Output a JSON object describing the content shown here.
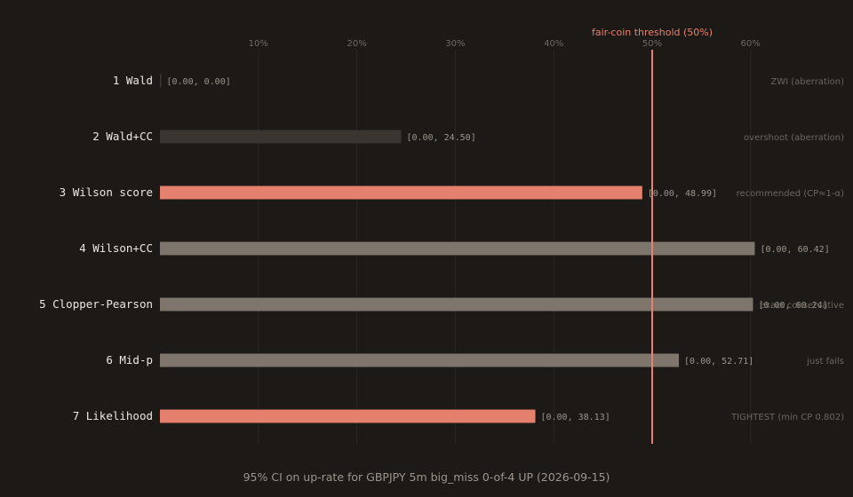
{
  "chart_data": {
    "type": "bar",
    "orientation": "horizontal",
    "title": "95% CI on up-rate for GBPJPY 5m big_miss 0-of-4 UP (2026-09-15)",
    "xlabel": "",
    "ylabel": "",
    "xlim": [
      0,
      65
    ],
    "x_ticks": [
      10,
      20,
      30,
      40,
      50,
      60
    ],
    "x_tick_labels": [
      "10%",
      "20%",
      "30%",
      "40%",
      "50%",
      "60%"
    ],
    "grid": "vertical",
    "threshold": {
      "value": 50,
      "label": "fair-coin threshold (50%)"
    },
    "colors": {
      "highlight": "#e5806e",
      "normal": "#7e756c",
      "aberration": "#3a3531",
      "threshold": "#e8826e",
      "background": "#1c1917"
    },
    "categories": [
      "1 Wald",
      "2 Wald+CC",
      "3 Wilson score",
      "4 Wilson+CC",
      "5 Clopper-Pearson",
      "6 Mid-p",
      "7 Likelihood"
    ],
    "intervals": [
      {
        "low": 0.0,
        "high": 0.0,
        "label": "[0.00, 0.00]",
        "note": "ZWI (aberration)",
        "style": "aberration"
      },
      {
        "low": 0.0,
        "high": 24.5,
        "label": "[0.00, 24.50]",
        "note": "overshoot (aberration)",
        "style": "aberration"
      },
      {
        "low": 0.0,
        "high": 48.99,
        "label": "[0.00, 48.99]",
        "note": "recommended (CP≈1-α)",
        "style": "highlight"
      },
      {
        "low": 0.0,
        "high": 60.42,
        "label": "[0.00, 60.42]",
        "note": "",
        "style": "normal"
      },
      {
        "low": 0.0,
        "high": 60.24,
        "label": "[0.00, 60.24]",
        "note": "exact conservative",
        "style": "normal"
      },
      {
        "low": 0.0,
        "high": 52.71,
        "label": "[0.00, 52.71]",
        "note": "just fails",
        "style": "normal"
      },
      {
        "low": 0.0,
        "high": 38.13,
        "label": "[0.00, 38.13]",
        "note": "TIGHTEST (min CP 0.802)",
        "style": "highlight"
      }
    ]
  }
}
